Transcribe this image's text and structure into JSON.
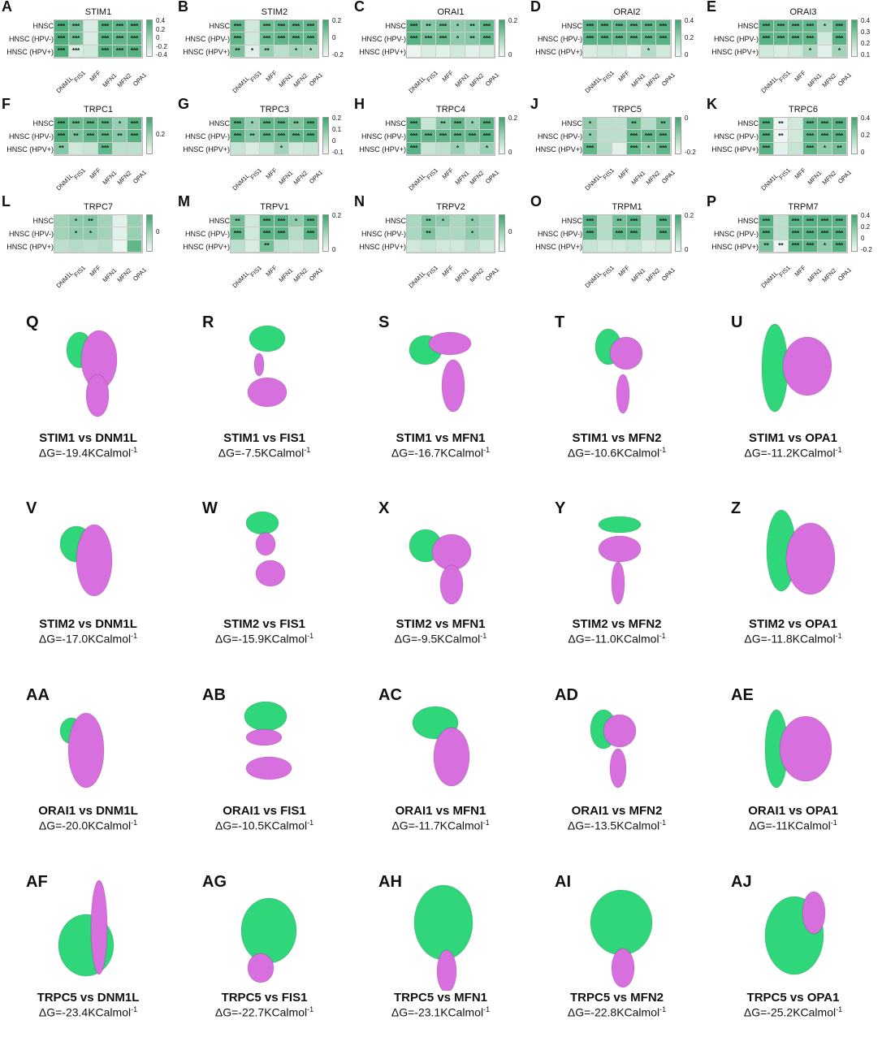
{
  "colors": {
    "green": "#2fd67a",
    "magenta": "#d86fdf",
    "heat_dark": "#3aa66e",
    "heat_light": "#f4f8f5"
  },
  "row_labels": [
    "HNSC",
    "HNSC (HPV-)",
    "HNSC (HPV+)"
  ],
  "col_labels": [
    "DNM1L",
    "FIS1",
    "MFF",
    "MFN1",
    "MFN2",
    "OPA1"
  ],
  "heatmaps": [
    {
      "letter": "A",
      "title": "STIM1",
      "ticks": [
        "0.4",
        "0.2",
        "0",
        "-0.2",
        "-0.4"
      ],
      "cells": [
        [
          "***",
          "***",
          "",
          "***",
          "***",
          "***"
        ],
        [
          "***",
          "***",
          "",
          "***",
          "***",
          "***"
        ],
        [
          "***",
          "***",
          "",
          "***",
          "***",
          "***"
        ]
      ],
      "levels": [
        [
          0.9,
          0.7,
          0.15,
          0.85,
          0.8,
          0.85
        ],
        [
          0.9,
          0.7,
          0.15,
          0.85,
          0.8,
          0.85
        ],
        [
          0.9,
          0.15,
          0.2,
          0.85,
          0.8,
          0.85
        ]
      ]
    },
    {
      "letter": "B",
      "title": "STIM2",
      "ticks": [
        "0.2",
        "0",
        "-0.2"
      ],
      "cells": [
        [
          "***",
          "",
          "***",
          "***",
          "***",
          "***"
        ],
        [
          "***",
          "",
          "***",
          "***",
          "***",
          "***"
        ],
        [
          "**",
          "*",
          "**",
          "",
          "*",
          "*"
        ]
      ],
      "levels": [
        [
          0.8,
          0.2,
          0.75,
          0.8,
          0.8,
          0.8
        ],
        [
          0.8,
          0.2,
          0.75,
          0.8,
          0.8,
          0.8
        ],
        [
          0.65,
          0.1,
          0.5,
          0.3,
          0.45,
          0.4
        ]
      ]
    },
    {
      "letter": "C",
      "title": "ORAI1",
      "ticks": [
        "0.2",
        "0"
      ],
      "cells": [
        [
          "***",
          "**",
          "***",
          "*",
          "**",
          "***"
        ],
        [
          "***",
          "***",
          "***",
          "*",
          "**",
          "***"
        ],
        [
          "",
          "",
          "",
          "",
          "",
          ""
        ]
      ],
      "levels": [
        [
          0.85,
          0.6,
          0.7,
          0.55,
          0.6,
          0.8
        ],
        [
          0.85,
          0.7,
          0.75,
          0.55,
          0.6,
          0.8
        ],
        [
          0.05,
          0.15,
          0.1,
          0.2,
          0.1,
          0.15
        ]
      ]
    },
    {
      "letter": "D",
      "title": "ORAI2",
      "ticks": [
        "0.4",
        "0.2",
        "0"
      ],
      "cells": [
        [
          "***",
          "***",
          "***",
          "***",
          "***",
          "***"
        ],
        [
          "***",
          "***",
          "***",
          "***",
          "***",
          "***"
        ],
        [
          "",
          "",
          "",
          "",
          "*",
          ""
        ]
      ],
      "levels": [
        [
          0.85,
          0.85,
          0.8,
          0.8,
          0.8,
          0.85
        ],
        [
          0.85,
          0.85,
          0.8,
          0.8,
          0.8,
          0.85
        ],
        [
          0.15,
          0.2,
          0.2,
          0.1,
          0.35,
          0.2
        ]
      ]
    },
    {
      "letter": "E",
      "title": "ORAI3",
      "ticks": [
        "0.4",
        "0.3",
        "0.2",
        "0.1"
      ],
      "cells": [
        [
          "***",
          "***",
          "***",
          "***",
          "*",
          "***"
        ],
        [
          "***",
          "***",
          "***",
          "***",
          "",
          "***"
        ],
        [
          "",
          "",
          "",
          "*",
          "",
          "*"
        ]
      ],
      "levels": [
        [
          0.85,
          0.8,
          0.8,
          0.8,
          0.45,
          0.85
        ],
        [
          0.85,
          0.8,
          0.8,
          0.8,
          0.2,
          0.85
        ],
        [
          0.2,
          0.15,
          0.2,
          0.4,
          0.1,
          0.45
        ]
      ]
    },
    {
      "letter": "F",
      "title": "TRPC1",
      "ticks": [
        "0.2"
      ],
      "cells": [
        [
          "***",
          "***",
          "***",
          "***",
          "*",
          "***"
        ],
        [
          "***",
          "**",
          "***",
          "***",
          "**",
          "***"
        ],
        [
          "**",
          "",
          "",
          "***",
          "",
          ""
        ]
      ],
      "levels": [
        [
          0.9,
          0.75,
          0.8,
          0.8,
          0.5,
          0.85
        ],
        [
          0.9,
          0.65,
          0.8,
          0.8,
          0.6,
          0.85
        ],
        [
          0.6,
          0.2,
          0.25,
          0.8,
          0.3,
          0.3
        ]
      ]
    },
    {
      "letter": "G",
      "title": "TRPC3",
      "ticks": [
        "0.2",
        "0.1",
        "0",
        "-0.1"
      ],
      "cells": [
        [
          "***",
          "*",
          "***",
          "***",
          "**",
          "***"
        ],
        [
          "***",
          "**",
          "***",
          "***",
          "***",
          "***"
        ],
        [
          "",
          "",
          "",
          "*",
          "",
          ""
        ]
      ],
      "levels": [
        [
          0.85,
          0.5,
          0.8,
          0.8,
          0.65,
          0.85
        ],
        [
          0.85,
          0.6,
          0.8,
          0.8,
          0.8,
          0.85
        ],
        [
          0.25,
          0.15,
          0.25,
          0.45,
          0.2,
          0.25
        ]
      ]
    },
    {
      "letter": "H",
      "title": "TRPC4",
      "ticks": [
        "0.2",
        "0"
      ],
      "cells": [
        [
          "***",
          "",
          "**",
          "***",
          "*",
          "***"
        ],
        [
          "***",
          "***",
          "***",
          "***",
          "***",
          "***"
        ],
        [
          "***",
          "",
          "",
          "*",
          "",
          "*"
        ]
      ],
      "levels": [
        [
          0.85,
          0.25,
          0.6,
          0.8,
          0.5,
          0.85
        ],
        [
          0.85,
          0.8,
          0.8,
          0.8,
          0.8,
          0.85
        ],
        [
          0.85,
          0.25,
          0.3,
          0.5,
          0.3,
          0.5
        ]
      ]
    },
    {
      "letter": "J",
      "title": "TRPC5",
      "ticks": [
        "0",
        "-0.2"
      ],
      "cells": [
        [
          "*",
          "",
          "",
          "**",
          "",
          "**"
        ],
        [
          "*",
          "",
          "",
          "***",
          "***",
          "***"
        ],
        [
          "***",
          "",
          "",
          "***",
          "*",
          "***"
        ]
      ],
      "levels": [
        [
          0.55,
          0.3,
          0.3,
          0.7,
          0.35,
          0.7
        ],
        [
          0.55,
          0.3,
          0.3,
          0.8,
          0.8,
          0.8
        ],
        [
          0.8,
          0.35,
          0.1,
          0.8,
          0.55,
          0.8
        ]
      ]
    },
    {
      "letter": "K",
      "title": "TRPC6",
      "ticks": [
        "0.4",
        "0.2",
        "0"
      ],
      "cells": [
        [
          "***",
          "**",
          "",
          "***",
          "***",
          "***"
        ],
        [
          "***",
          "**",
          "",
          "***",
          "***",
          "***"
        ],
        [
          "***",
          "",
          "",
          "***",
          "*",
          "**"
        ]
      ],
      "levels": [
        [
          0.85,
          0.05,
          0.2,
          0.8,
          0.8,
          0.85
        ],
        [
          0.85,
          0.05,
          0.2,
          0.8,
          0.8,
          0.85
        ],
        [
          0.85,
          0.1,
          0.25,
          0.8,
          0.55,
          0.7
        ]
      ]
    },
    {
      "letter": "L",
      "title": "TRPC7",
      "ticks": [
        "0"
      ],
      "cells": [
        [
          "",
          "*",
          "**",
          "",
          "",
          ""
        ],
        [
          "",
          "*",
          "*",
          "",
          "",
          ""
        ],
        [
          "",
          "",
          "",
          "",
          "",
          ""
        ]
      ],
      "levels": [
        [
          0.45,
          0.55,
          0.6,
          0.45,
          0.1,
          0.5
        ],
        [
          0.45,
          0.55,
          0.55,
          0.45,
          0.1,
          0.5
        ],
        [
          0.3,
          0.35,
          0.3,
          0.35,
          0.05,
          0.8
        ]
      ]
    },
    {
      "letter": "M",
      "title": "TRPV1",
      "ticks": [
        "0.2",
        "0"
      ],
      "cells": [
        [
          "**",
          "",
          "***",
          "***",
          "*",
          "***"
        ],
        [
          "***",
          "",
          "***",
          "***",
          "",
          "***"
        ],
        [
          "",
          "",
          "**",
          "",
          "",
          ""
        ]
      ],
      "levels": [
        [
          0.7,
          0.2,
          0.85,
          0.85,
          0.55,
          0.85
        ],
        [
          0.8,
          0.2,
          0.85,
          0.85,
          0.35,
          0.85
        ],
        [
          0.3,
          0.15,
          0.7,
          0.3,
          0.25,
          0.3
        ]
      ]
    },
    {
      "letter": "N",
      "title": "TRPV2",
      "ticks": [
        "0"
      ],
      "cells": [
        [
          "",
          "**",
          "*",
          "",
          "*",
          ""
        ],
        [
          "",
          "**",
          "",
          "",
          "*",
          ""
        ],
        [
          "",
          "",
          "",
          "",
          "",
          ""
        ]
      ],
      "levels": [
        [
          0.4,
          0.65,
          0.55,
          0.4,
          0.55,
          0.45
        ],
        [
          0.4,
          0.65,
          0.4,
          0.4,
          0.55,
          0.45
        ],
        [
          0.2,
          0.25,
          0.2,
          0.2,
          0.3,
          0.2
        ]
      ]
    },
    {
      "letter": "O",
      "title": "TRPM1",
      "ticks": [
        "0.2",
        "0"
      ],
      "cells": [
        [
          "***",
          "",
          "**",
          "***",
          "",
          "***"
        ],
        [
          "***",
          "",
          "***",
          "***",
          "",
          "***"
        ],
        [
          "",
          "",
          "",
          "",
          "",
          ""
        ]
      ],
      "levels": [
        [
          0.85,
          0.35,
          0.7,
          0.85,
          0.35,
          0.85
        ],
        [
          0.85,
          0.35,
          0.8,
          0.85,
          0.35,
          0.85
        ],
        [
          0.25,
          0.2,
          0.2,
          0.25,
          0.15,
          0.2
        ]
      ]
    },
    {
      "letter": "P",
      "title": "TRPM7",
      "ticks": [
        "0.4",
        "0.2",
        "0",
        "-0.2"
      ],
      "cells": [
        [
          "***",
          "",
          "***",
          "***",
          "***",
          "***"
        ],
        [
          "***",
          "",
          "***",
          "***",
          "***",
          "***"
        ],
        [
          "**",
          "**",
          "***",
          "***",
          "*",
          "***"
        ]
      ],
      "levels": [
        [
          0.85,
          0.3,
          0.85,
          0.85,
          0.85,
          0.85
        ],
        [
          0.85,
          0.3,
          0.85,
          0.85,
          0.85,
          0.85
        ],
        [
          0.65,
          0.05,
          0.85,
          0.85,
          0.55,
          0.85
        ]
      ]
    }
  ],
  "docking": [
    {
      "letter": "Q",
      "title": "STIM1 vs DNM1L",
      "dg": "ΔG=-19.4KCalmol",
      "sup": "-1"
    },
    {
      "letter": "R",
      "title": "STIM1 vs FIS1",
      "dg": "ΔG=-7.5KCalmol",
      "sup": "-1"
    },
    {
      "letter": "S",
      "title": "STIM1 vs MFN1",
      "dg": "ΔG=-16.7KCalmol",
      "sup": "-1"
    },
    {
      "letter": "T",
      "title": "STIM1 vs MFN2",
      "dg": "ΔG=-10.6KCalmol",
      "sup": "-1"
    },
    {
      "letter": "U",
      "title": "STIM1 vs OPA1",
      "dg": "ΔG=-11.2KCalmol",
      "sup": "-1"
    },
    {
      "letter": "V",
      "title": "STIM2 vs DNM1L",
      "dg": "ΔG=-17.0KCalmol",
      "sup": "-1"
    },
    {
      "letter": "W",
      "title": "STIM2 vs FIS1",
      "dg": "ΔG=-15.9KCalmol",
      "sup": "-1"
    },
    {
      "letter": "X",
      "title": "STIM2 vs MFN1",
      "dg": "ΔG=-9.5KCalmol",
      "sup": "-1"
    },
    {
      "letter": "Y",
      "title": "STIM2 vs MFN2",
      "dg": "ΔG=-11.0KCalmol",
      "sup": "-1"
    },
    {
      "letter": "Z",
      "title": "STIM2 vs OPA1",
      "dg": "ΔG=-11.8KCalmol",
      "sup": "-1"
    },
    {
      "letter": "AA",
      "title": "ORAI1 vs DNM1L",
      "dg": "ΔG=-20.0KCalmol",
      "sup": "-1"
    },
    {
      "letter": "AB",
      "title": "ORAI1 vs FIS1",
      "dg": "ΔG=-10.5KCalmol",
      "sup": "-1"
    },
    {
      "letter": "AC",
      "title": "ORAI1 vs MFN1",
      "dg": "ΔG=-11.7KCalmol",
      "sup": "-1"
    },
    {
      "letter": "AD",
      "title": "ORAI1 vs MFN2",
      "dg": "ΔG=-13.5KCalmol",
      "sup": "-1"
    },
    {
      "letter": "AE",
      "title": "ORAI1 vs OPA1",
      "dg": "ΔG=-11KCalmol",
      "sup": "-1"
    },
    {
      "letter": "AF",
      "title": "TRPC5 vs DNM1L",
      "dg": "ΔG=-23.4KCalmol",
      "sup": "-1"
    },
    {
      "letter": "AG",
      "title": "TRPC5 vs FIS1",
      "dg": "ΔG=-22.7KCalmol",
      "sup": "-1"
    },
    {
      "letter": "AH",
      "title": "TRPC5 vs MFN1",
      "dg": "ΔG=-23.1KCalmol",
      "sup": "-1"
    },
    {
      "letter": "AI",
      "title": "TRPC5 vs MFN2",
      "dg": "ΔG=-22.8KCalmol",
      "sup": "-1"
    },
    {
      "letter": "AJ",
      "title": "TRPC5 vs OPA1",
      "dg": "ΔG=-25.2KCalmol",
      "sup": "-1"
    }
  ]
}
